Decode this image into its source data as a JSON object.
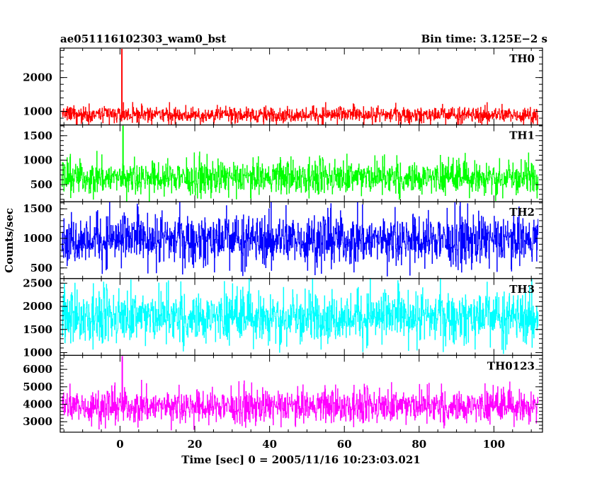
{
  "header": {
    "title": "ae051116102303_wam0_bst",
    "bin_time": "Bin time: 3.125E−2 s"
  },
  "chart_data": {
    "type": "line",
    "title": "ae051116102303_wam0_bst",
    "xlabel": "Time [sec] 0 = 2005/11/16 10:23:03.021",
    "ylabel": "Counts/sec",
    "xlim": [
      -16,
      113
    ],
    "x_ticks": [
      0,
      20,
      40,
      60,
      80,
      100
    ],
    "x_tick_labels": [
      "0",
      "20",
      "40",
      "60",
      "80",
      "100"
    ],
    "data_x_range": [
      -15.6,
      111.8
    ],
    "panels": [
      {
        "name": "TH0",
        "color": "#ff0000",
        "ylim": [
          600,
          2870
        ],
        "y_ticks": [
          1000,
          2000
        ],
        "y_tick_labels": [
          "1000",
          "2000"
        ],
        "baseline": 800,
        "noise_range": [
          550,
          1250
        ],
        "spike": {
          "x": 0.5,
          "peak": 2870
        }
      },
      {
        "name": "TH1",
        "color": "#00ff00",
        "ylim": [
          150,
          1720
        ],
        "y_ticks": [
          500,
          1000,
          1500
        ],
        "y_tick_labels": [
          "500",
          "1000",
          "1500"
        ],
        "baseline": 480,
        "noise_range": [
          150,
          1150
        ],
        "spike": {
          "x": 0.8,
          "peak": 1720
        }
      },
      {
        "name": "TH2",
        "color": "#0000ff",
        "ylim": [
          320,
          1620
        ],
        "y_ticks": [
          500,
          1000,
          1500
        ],
        "y_tick_labels": [
          "500",
          "1000",
          "1500"
        ],
        "baseline": 880,
        "noise_range": [
          350,
          1620
        ],
        "spike": null
      },
      {
        "name": "TH3",
        "color": "#00ffff",
        "ylim": [
          940,
          2600
        ],
        "y_ticks": [
          1000,
          1500,
          2000,
          2500
        ],
        "y_tick_labels": [
          "1000",
          "1500",
          "2000",
          "2500"
        ],
        "baseline": 1760,
        "noise_range": [
          950,
          2600
        ],
        "spike": null
      },
      {
        "name": "TH0123",
        "color": "#ff00ff",
        "ylim": [
          2400,
          6800
        ],
        "y_ticks": [
          3000,
          4000,
          5000,
          6000
        ],
        "y_tick_labels": [
          "3000",
          "4000",
          "5000",
          "6000"
        ],
        "baseline": 3700,
        "noise_range": [
          2500,
          5300
        ],
        "spike": {
          "x": 0.6,
          "peak": 6800
        }
      }
    ]
  }
}
